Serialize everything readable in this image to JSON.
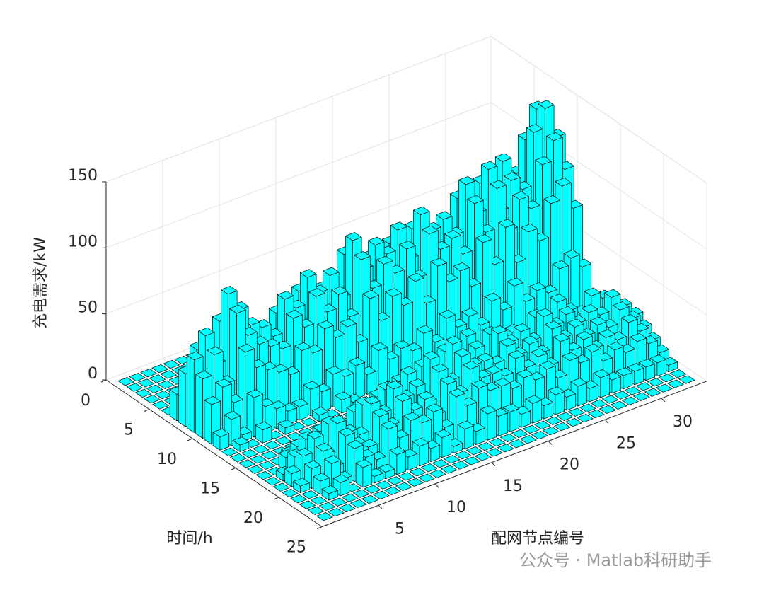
{
  "chart_data": {
    "type": "bar3",
    "xlabel": "配网节点编号",
    "ylabel": "时间/h",
    "zlabel": "充电需求/kW",
    "watermark": "公众号 · Matlab科研助手",
    "color": "#00ffff",
    "edge_color": "#000000",
    "xlim": [
      0,
      34
    ],
    "xticks": [
      5,
      10,
      15,
      20,
      25,
      30
    ],
    "ylim": [
      0,
      25
    ],
    "yticks": [
      0,
      5,
      10,
      15,
      20,
      25
    ],
    "zlim": [
      0,
      150
    ],
    "zticks": [
      0,
      50,
      100,
      150
    ],
    "grid": true,
    "values": [
      [
        0,
        0,
        0,
        0,
        0,
        0,
        0,
        0,
        0,
        0,
        0,
        0,
        0,
        0,
        0,
        0,
        0,
        0,
        0,
        0,
        0,
        0,
        0,
        0,
        0,
        0,
        0,
        0,
        0,
        0,
        0,
        0,
        0
      ],
      [
        0,
        0,
        0,
        0,
        0,
        0,
        0,
        0,
        0,
        0,
        0,
        0,
        0,
        0,
        0,
        0,
        0,
        0,
        0,
        0,
        0,
        0,
        0,
        0,
        0,
        0,
        0,
        0,
        0,
        0,
        0,
        0,
        0
      ],
      [
        0,
        0,
        0,
        0,
        0,
        0,
        0,
        0,
        0,
        0,
        0,
        0,
        0,
        0,
        0,
        0,
        0,
        0,
        0,
        0,
        0,
        0,
        0,
        0,
        0,
        0,
        0,
        0,
        0,
        0,
        0,
        0,
        0
      ],
      [
        0,
        0,
        0,
        0,
        0,
        0,
        0,
        0,
        0,
        0,
        0,
        0,
        0,
        0,
        0,
        0,
        0,
        0,
        0,
        0,
        0,
        0,
        0,
        0,
        0,
        0,
        0,
        0,
        0,
        0,
        0,
        0,
        0
      ],
      [
        0,
        0,
        0,
        0,
        0,
        0,
        0,
        0,
        0,
        0,
        0,
        0,
        0,
        0,
        0,
        0,
        0,
        0,
        0,
        0,
        0,
        0,
        0,
        0,
        0,
        0,
        0,
        0,
        0,
        0,
        0,
        0,
        0
      ],
      [
        0,
        0,
        0,
        0,
        0,
        0,
        0,
        0,
        0,
        0,
        0,
        0,
        0,
        0,
        0,
        0,
        0,
        0,
        0,
        0,
        0,
        0,
        0,
        0,
        0,
        0,
        0,
        0,
        0,
        0,
        0,
        0,
        0
      ],
      [
        20,
        35,
        15,
        50,
        30,
        45,
        25,
        20,
        40,
        30,
        55,
        35,
        45,
        25,
        60,
        40,
        55,
        45,
        60,
        35,
        65,
        50,
        55,
        40,
        70,
        55,
        75,
        45,
        80,
        60,
        90,
        100,
        85
      ],
      [
        40,
        55,
        30,
        70,
        60,
        55,
        45,
        40,
        60,
        50,
        70,
        55,
        65,
        45,
        85,
        60,
        75,
        65,
        80,
        55,
        85,
        70,
        75,
        60,
        95,
        70,
        100,
        65,
        110,
        80,
        120,
        140,
        110
      ],
      [
        55,
        70,
        45,
        95,
        80,
        65,
        60,
        50,
        75,
        65,
        85,
        70,
        80,
        60,
        100,
        75,
        90,
        80,
        95,
        70,
        100,
        85,
        90,
        75,
        110,
        85,
        115,
        80,
        100,
        90,
        130,
        145,
        120
      ],
      [
        45,
        60,
        35,
        85,
        65,
        55,
        50,
        45,
        65,
        55,
        75,
        60,
        70,
        50,
        90,
        65,
        80,
        70,
        85,
        60,
        90,
        75,
        80,
        65,
        100,
        75,
        105,
        70,
        90,
        80,
        110,
        125,
        100
      ],
      [
        30,
        40,
        25,
        60,
        45,
        40,
        35,
        30,
        45,
        40,
        55,
        45,
        50,
        35,
        65,
        45,
        60,
        50,
        65,
        45,
        70,
        55,
        60,
        45,
        75,
        55,
        80,
        50,
        70,
        60,
        85,
        95,
        75
      ],
      [
        10,
        20,
        5,
        30,
        20,
        15,
        10,
        10,
        20,
        15,
        25,
        20,
        25,
        15,
        30,
        20,
        25,
        20,
        30,
        20,
        35,
        25,
        30,
        20,
        35,
        25,
        40,
        25,
        30,
        25,
        40,
        45,
        35
      ],
      [
        0,
        5,
        0,
        10,
        0,
        5,
        0,
        0,
        5,
        0,
        10,
        5,
        0,
        0,
        5,
        0,
        5,
        0,
        5,
        0,
        5,
        0,
        5,
        0,
        5,
        0,
        5,
        0,
        5,
        0,
        5,
        5,
        0
      ],
      [
        0,
        0,
        0,
        0,
        0,
        0,
        0,
        0,
        0,
        0,
        0,
        0,
        0,
        0,
        0,
        0,
        0,
        0,
        0,
        0,
        0,
        0,
        0,
        0,
        0,
        0,
        0,
        0,
        0,
        0,
        0,
        0,
        0
      ],
      [
        0,
        0,
        0,
        0,
        0,
        0,
        0,
        0,
        0,
        0,
        0,
        0,
        0,
        0,
        0,
        0,
        0,
        0,
        0,
        0,
        0,
        0,
        0,
        0,
        0,
        0,
        0,
        0,
        0,
        0,
        0,
        0,
        0
      ],
      [
        0,
        0,
        0,
        5,
        0,
        0,
        0,
        0,
        10,
        0,
        0,
        15,
        0,
        0,
        20,
        0,
        0,
        0,
        25,
        0,
        0,
        0,
        15,
        0,
        0,
        20,
        0,
        0,
        15,
        0,
        0,
        0,
        0
      ],
      [
        0,
        0,
        10,
        15,
        5,
        20,
        0,
        10,
        25,
        15,
        30,
        20,
        35,
        10,
        40,
        20,
        45,
        30,
        50,
        25,
        45,
        35,
        40,
        30,
        45,
        35,
        50,
        40,
        35,
        45,
        40,
        30,
        20
      ],
      [
        0,
        5,
        15,
        25,
        10,
        30,
        20,
        15,
        35,
        25,
        40,
        30,
        45,
        20,
        50,
        30,
        55,
        35,
        45,
        30,
        50,
        40,
        45,
        35,
        50,
        40,
        45,
        35,
        40,
        35,
        45,
        35,
        25
      ],
      [
        0,
        10,
        20,
        30,
        15,
        35,
        25,
        20,
        40,
        30,
        45,
        35,
        40,
        25,
        45,
        35,
        50,
        40,
        40,
        35,
        45,
        35,
        40,
        30,
        45,
        35,
        40,
        30,
        35,
        30,
        40,
        30,
        20
      ],
      [
        0,
        5,
        15,
        25,
        10,
        30,
        20,
        15,
        35,
        25,
        40,
        30,
        35,
        20,
        40,
        30,
        45,
        35,
        35,
        30,
        40,
        30,
        35,
        25,
        40,
        30,
        35,
        25,
        30,
        25,
        35,
        25,
        15
      ],
      [
        0,
        0,
        10,
        20,
        5,
        25,
        15,
        10,
        30,
        20,
        30,
        25,
        30,
        15,
        35,
        25,
        35,
        30,
        30,
        25,
        30,
        25,
        30,
        20,
        30,
        25,
        30,
        20,
        25,
        20,
        25,
        20,
        10
      ],
      [
        0,
        0,
        5,
        10,
        0,
        15,
        5,
        5,
        15,
        10,
        15,
        10,
        15,
        5,
        15,
        10,
        20,
        15,
        15,
        10,
        15,
        10,
        15,
        10,
        15,
        10,
        15,
        10,
        10,
        10,
        10,
        10,
        5
      ],
      [
        0,
        0,
        0,
        0,
        0,
        0,
        0,
        0,
        0,
        0,
        0,
        0,
        0,
        0,
        0,
        0,
        0,
        0,
        0,
        0,
        0,
        0,
        0,
        0,
        0,
        0,
        0,
        0,
        0,
        0,
        0,
        0,
        0
      ],
      [
        0,
        0,
        0,
        0,
        0,
        0,
        0,
        0,
        0,
        0,
        0,
        0,
        0,
        0,
        0,
        0,
        0,
        0,
        0,
        0,
        0,
        0,
        0,
        0,
        0,
        0,
        0,
        0,
        0,
        0,
        0,
        0,
        0
      ]
    ]
  }
}
